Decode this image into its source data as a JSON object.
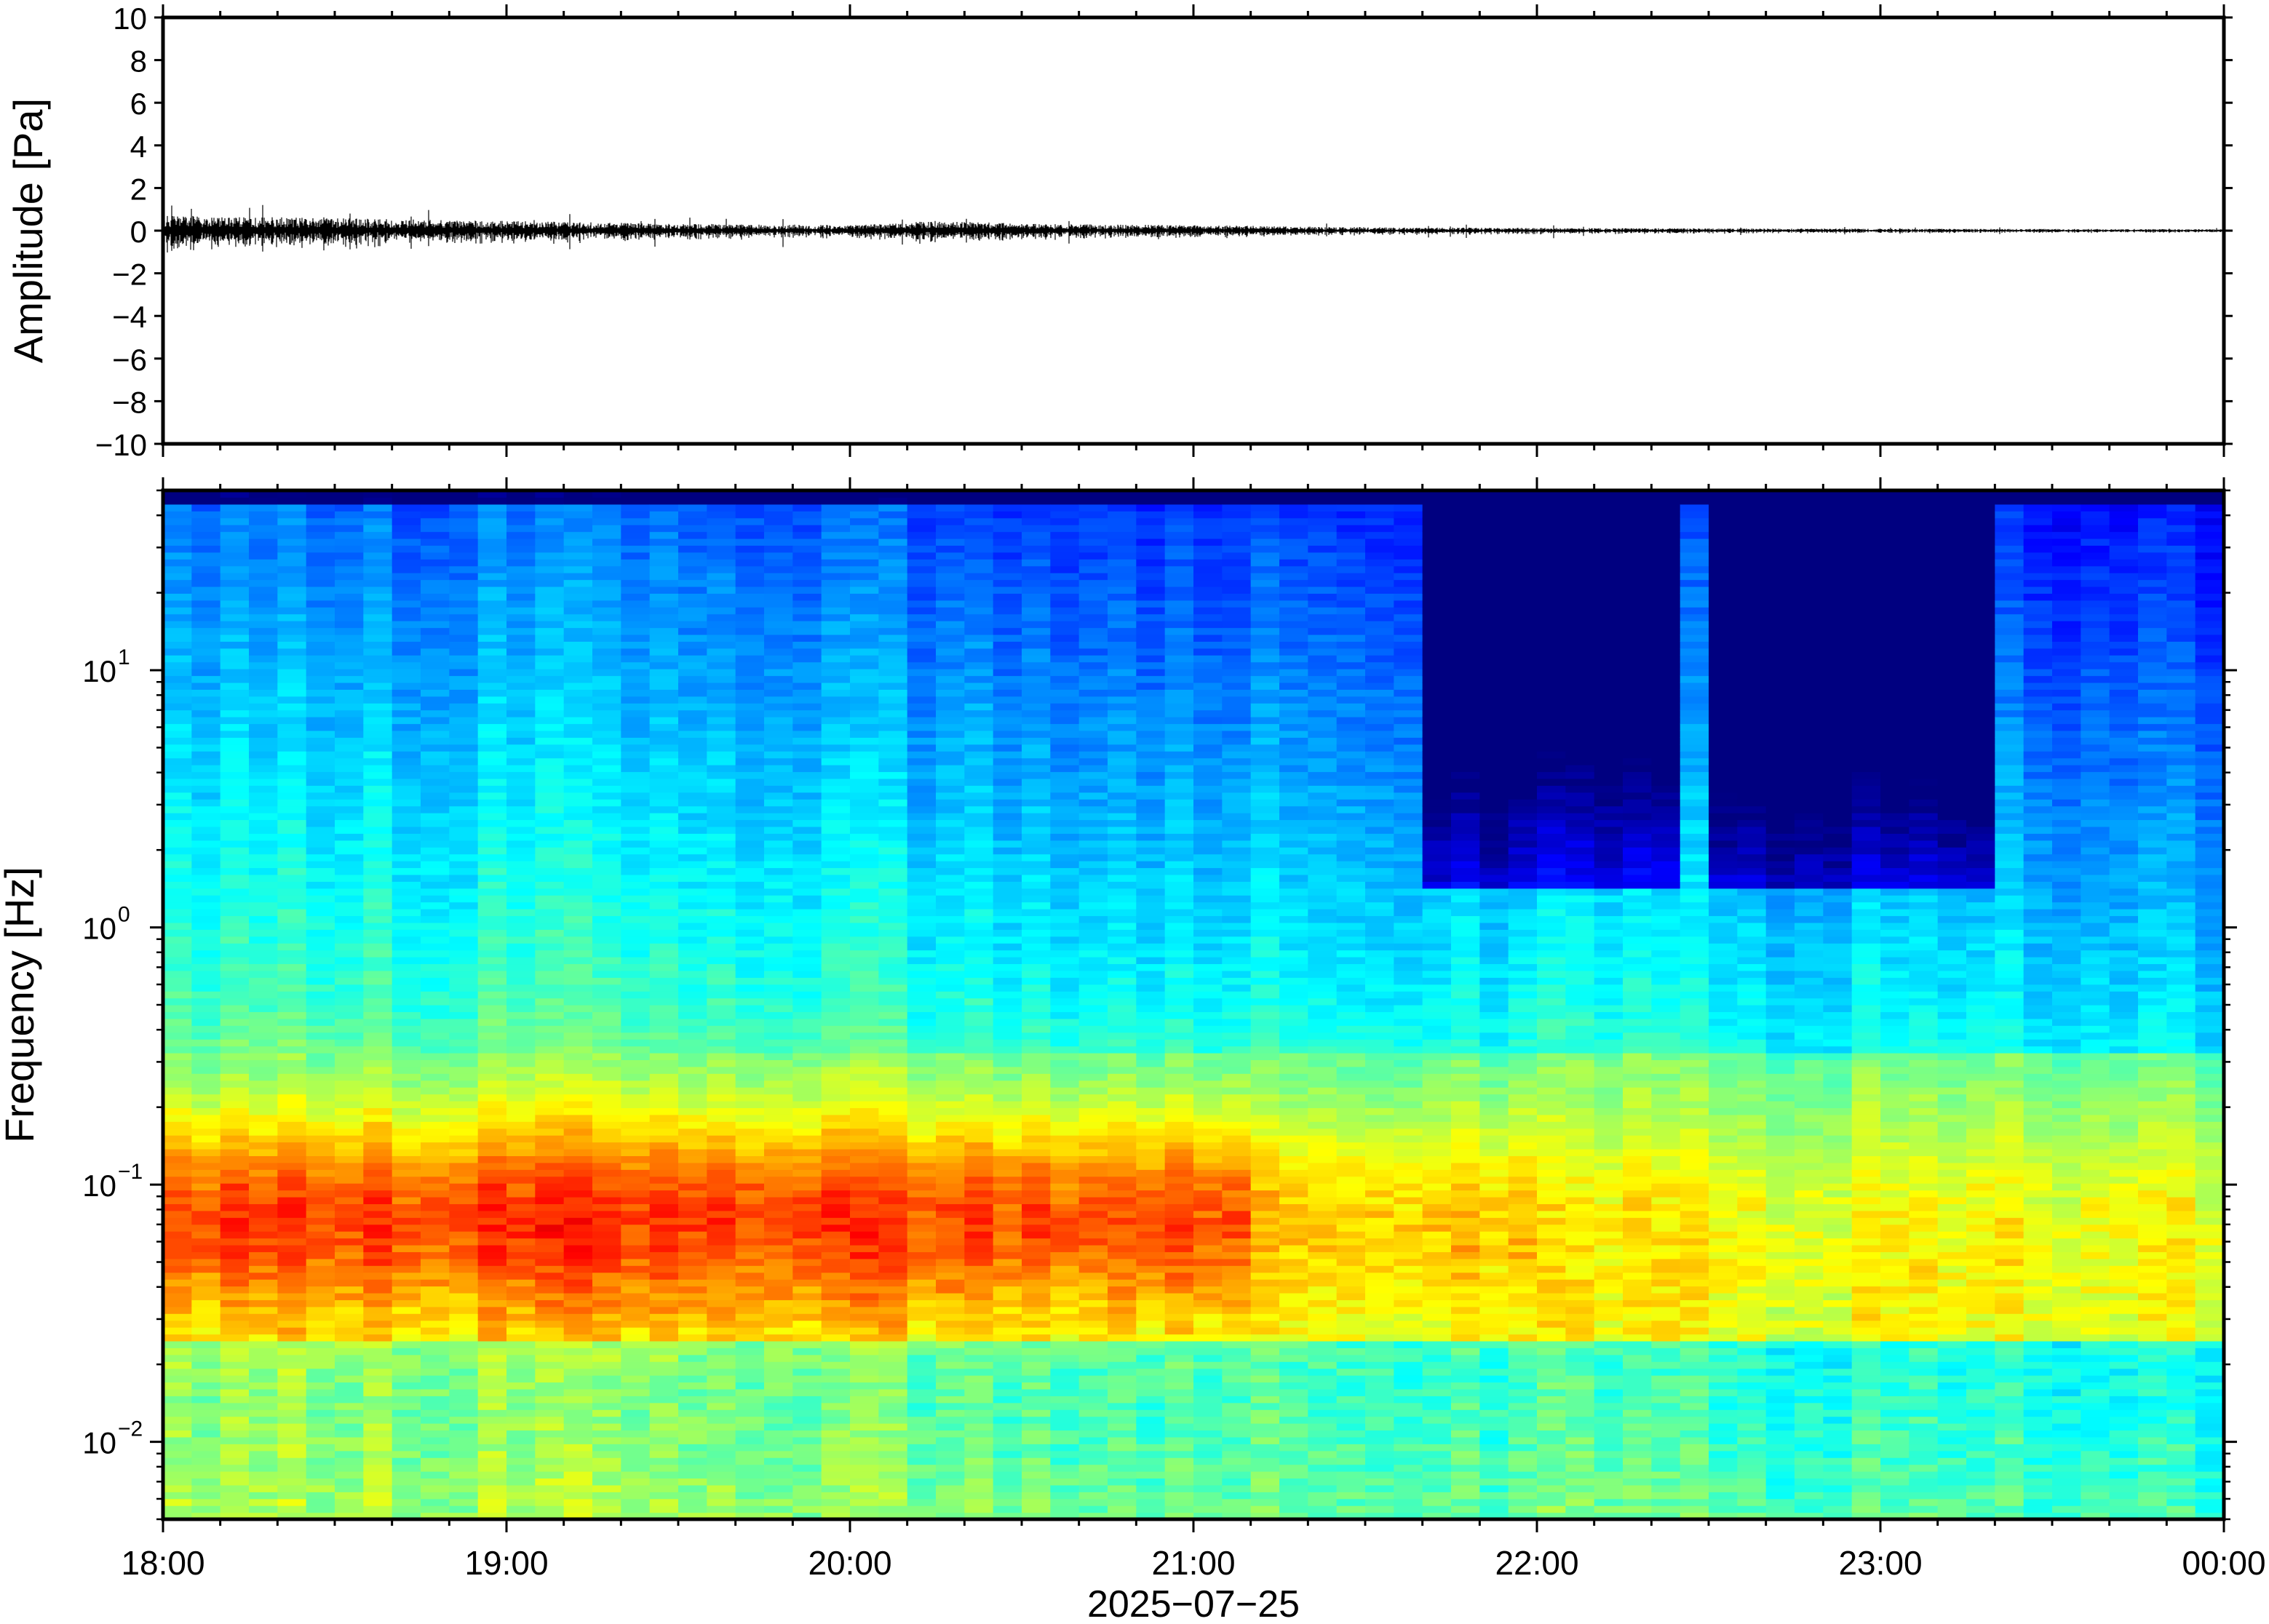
{
  "chart_data": [
    {
      "type": "line",
      "ylabel": "Amplitude [Pa]",
      "ylim": [
        -10,
        10
      ],
      "yticks": [
        "10",
        "8",
        "6",
        "4",
        "2",
        "0",
        "−2",
        "−4",
        "−6",
        "−8",
        "−10"
      ],
      "grid": false,
      "series": [
        {
          "x_hours": [
            18.0,
            18.5,
            19.0,
            19.5,
            20.0,
            20.25,
            20.5,
            21.0,
            21.5,
            22.0,
            22.5,
            23.0,
            23.5,
            24.0
          ],
          "envelope_pa": [
            0.55,
            0.45,
            0.35,
            0.25,
            0.2,
            0.35,
            0.25,
            0.2,
            0.12,
            0.1,
            0.08,
            0.07,
            0.06,
            0.05
          ]
        }
      ]
    },
    {
      "type": "heatmap",
      "ylabel": "Frequency [Hz]",
      "yscale": "log",
      "ylim": [
        0.005,
        50
      ],
      "yticks": [
        {
          "base": "10",
          "exp": "1"
        },
        {
          "base": "10",
          "exp": "0"
        },
        {
          "base": "10",
          "exp": "−1"
        },
        {
          "base": "10",
          "exp": "−2"
        }
      ],
      "xlabel": "2025−07−25",
      "xticks": [
        "18:00",
        "19:00",
        "20:00",
        "21:00",
        "22:00",
        "23:00",
        "00:00"
      ],
      "xlim": [
        "2025-07-25T18:00",
        "2025-07-26T00:00"
      ],
      "colormap": "jet",
      "quiet_interval_hours": [
        [
          21.7,
          22.4
        ],
        [
          22.5,
          23.3
        ]
      ],
      "high_power_band_hz": [
        0.03,
        0.2
      ]
    }
  ],
  "colors": {
    "background": "#ffffff",
    "axis": "#000000",
    "trace": "#000000"
  }
}
